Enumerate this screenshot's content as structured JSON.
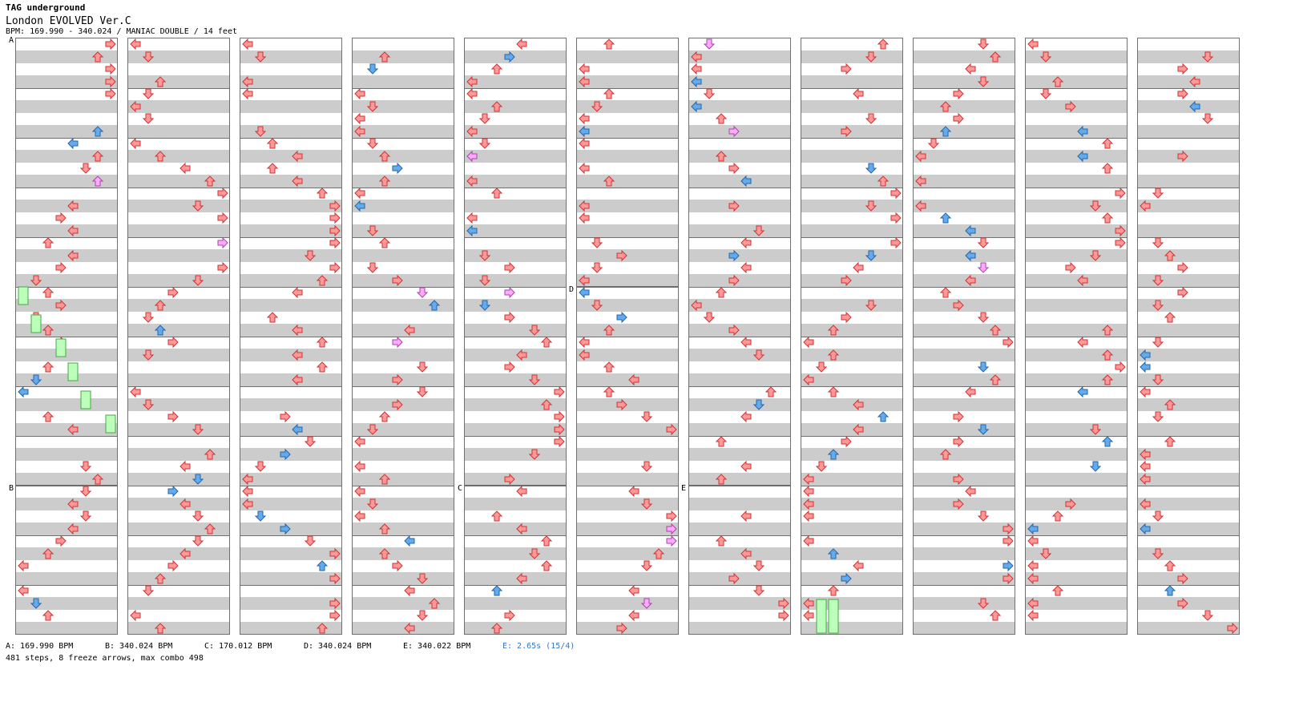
{
  "header": {
    "artist": "TAG underground",
    "title": "London EVOLVED Ver.C",
    "info": "BPM: 169.990 - 340.024 / MANIAC DOUBLE / 14 feet"
  },
  "sections": [
    {
      "label": "A",
      "bpm_text": "A: 169.990 BPM"
    },
    {
      "label": "B",
      "bpm_text": "B: 340.024 BPM"
    },
    {
      "label": "C",
      "bpm_text": "C: 170.012 BPM"
    },
    {
      "label": "D",
      "bpm_text": "D: 340.024 BPM"
    },
    {
      "label": "E",
      "bpm_text": "E: 340.022 BPM"
    }
  ],
  "stop_text": "E: 2.65s (15/4)",
  "summary": "481 steps, 8 freeze arrows, max combo 498",
  "colors": {
    "band": "#cccccc",
    "measure_line": "#707070",
    "section_line": "#3377bb",
    "arrow_red": "#ff9999",
    "arrow_red_edge": "#cc3333",
    "arrow_blue": "#66aaee",
    "arrow_blue_edge": "#2266aa",
    "arrow_pink": "#ffaaff",
    "arrow_pink_edge": "#aa44aa",
    "freeze": "#bbffbb",
    "freeze_edge": "#44aa44"
  }
}
